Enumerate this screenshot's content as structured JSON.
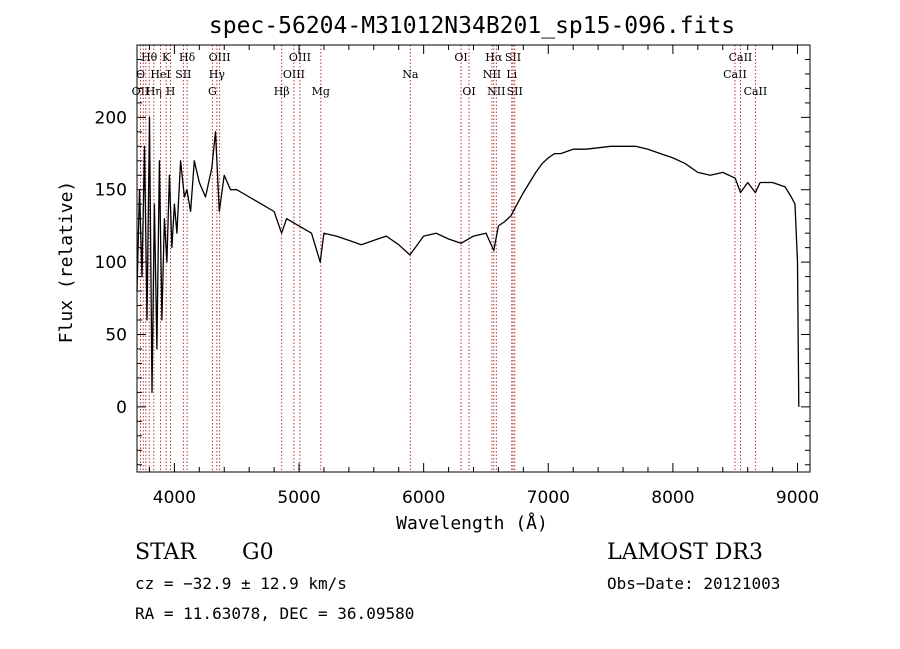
{
  "chart_data": {
    "type": "line",
    "title": "spec-56204-M31012N34B201_sp15-096.fits",
    "xlabel": "Wavelength (Å)",
    "ylabel": "Flux (relative)",
    "xlim": [
      3700,
      9100
    ],
    "ylim": [
      -45,
      250
    ],
    "xticks": [
      4000,
      5000,
      6000,
      7000,
      8000,
      9000
    ],
    "yticks": [
      0,
      50,
      100,
      150,
      200
    ],
    "series": [
      {
        "name": "flux",
        "x": [
          3700,
          3720,
          3740,
          3760,
          3780,
          3800,
          3820,
          3840,
          3860,
          3880,
          3900,
          3920,
          3940,
          3960,
          3980,
          4000,
          4020,
          4050,
          4080,
          4100,
          4130,
          4160,
          4200,
          4250,
          4300,
          4330,
          4360,
          4400,
          4450,
          4500,
          4600,
          4700,
          4800,
          4860,
          4900,
          5000,
          5100,
          5170,
          5200,
          5300,
          5400,
          5500,
          5600,
          5700,
          5800,
          5890,
          5950,
          6000,
          6100,
          6200,
          6300,
          6400,
          6500,
          6563,
          6600,
          6650,
          6700,
          6750,
          6800,
          6850,
          6900,
          6950,
          7000,
          7050,
          7100,
          7200,
          7300,
          7400,
          7500,
          7600,
          7700,
          7800,
          7900,
          8000,
          8100,
          8200,
          8300,
          8400,
          8500,
          8542,
          8600,
          8662,
          8700,
          8800,
          8900,
          8950,
          8980,
          9000,
          9010
        ],
        "values": [
          80,
          150,
          90,
          180,
          60,
          200,
          10,
          140,
          40,
          170,
          60,
          130,
          100,
          160,
          110,
          140,
          120,
          170,
          145,
          150,
          135,
          170,
          155,
          145,
          165,
          190,
          135,
          160,
          150,
          150,
          145,
          140,
          135,
          120,
          130,
          125,
          120,
          100,
          120,
          118,
          115,
          112,
          115,
          118,
          112,
          105,
          112,
          118,
          120,
          116,
          113,
          118,
          120,
          108,
          125,
          128,
          132,
          140,
          148,
          155,
          162,
          168,
          172,
          175,
          175,
          178,
          178,
          179,
          180,
          180,
          180,
          178,
          175,
          172,
          168,
          162,
          160,
          162,
          158,
          148,
          155,
          148,
          155,
          155,
          152,
          145,
          140,
          100,
          0
        ]
      }
    ],
    "lines": [
      {
        "w": 3728,
        "labels": [
          "",
          "O",
          "OII"
        ]
      },
      {
        "w": 3750,
        "labels": [
          "",
          "",
          ""
        ]
      },
      {
        "w": 3771,
        "labels": [
          "",
          "",
          ""
        ]
      },
      {
        "w": 3798,
        "labels": [
          "Hθ",
          "",
          ""
        ]
      },
      {
        "w": 3835,
        "labels": [
          "",
          "",
          "Hη"
        ]
      },
      {
        "w": 3889,
        "labels": [
          "",
          "HeI",
          ""
        ]
      },
      {
        "w": 3934,
        "labels": [
          "K",
          "",
          ""
        ]
      },
      {
        "w": 3969,
        "labels": [
          "",
          "",
          "H"
        ]
      },
      {
        "w": 4072,
        "labels": [
          "",
          "SII",
          ""
        ]
      },
      {
        "w": 4102,
        "labels": [
          "Hδ",
          "",
          ""
        ]
      },
      {
        "w": 4305,
        "labels": [
          "",
          "",
          "G"
        ]
      },
      {
        "w": 4341,
        "labels": [
          "",
          "Hγ",
          ""
        ]
      },
      {
        "w": 4363,
        "labels": [
          "OIII",
          "",
          ""
        ]
      },
      {
        "w": 4861,
        "labels": [
          "",
          "",
          "Hβ"
        ]
      },
      {
        "w": 4959,
        "labels": [
          "",
          "OIII",
          ""
        ]
      },
      {
        "w": 5007,
        "labels": [
          "OIII",
          "",
          ""
        ]
      },
      {
        "w": 5175,
        "labels": [
          "",
          "",
          "Mg"
        ]
      },
      {
        "w": 5893,
        "labels": [
          "",
          "Na",
          ""
        ]
      },
      {
        "w": 6300,
        "labels": [
          "OI",
          "",
          ""
        ]
      },
      {
        "w": 6364,
        "labels": [
          "",
          "",
          "OI"
        ]
      },
      {
        "w": 6548,
        "labels": [
          "",
          "NII",
          ""
        ]
      },
      {
        "w": 6563,
        "labels": [
          "Hα",
          "",
          ""
        ]
      },
      {
        "w": 6583,
        "labels": [
          "",
          "",
          "NII"
        ]
      },
      {
        "w": 6707,
        "labels": [
          "",
          "Li",
          ""
        ]
      },
      {
        "w": 6717,
        "labels": [
          "SII",
          "",
          ""
        ]
      },
      {
        "w": 6731,
        "labels": [
          "",
          "",
          "SII"
        ]
      },
      {
        "w": 8498,
        "labels": [
          "",
          "CaII",
          ""
        ]
      },
      {
        "w": 8542,
        "labels": [
          "CaII",
          "",
          ""
        ]
      },
      {
        "w": 8662,
        "labels": [
          "",
          "",
          "CaII"
        ]
      }
    ]
  },
  "info": {
    "class": "STAR",
    "subclass": "G0",
    "survey": "LAMOST DR3",
    "cz": "cz = −32.9 ± 12.9 km/s",
    "obsdate": "Obs−Date: 20121003",
    "radec": "RA =  11.63078, DEC =  36.09580"
  }
}
